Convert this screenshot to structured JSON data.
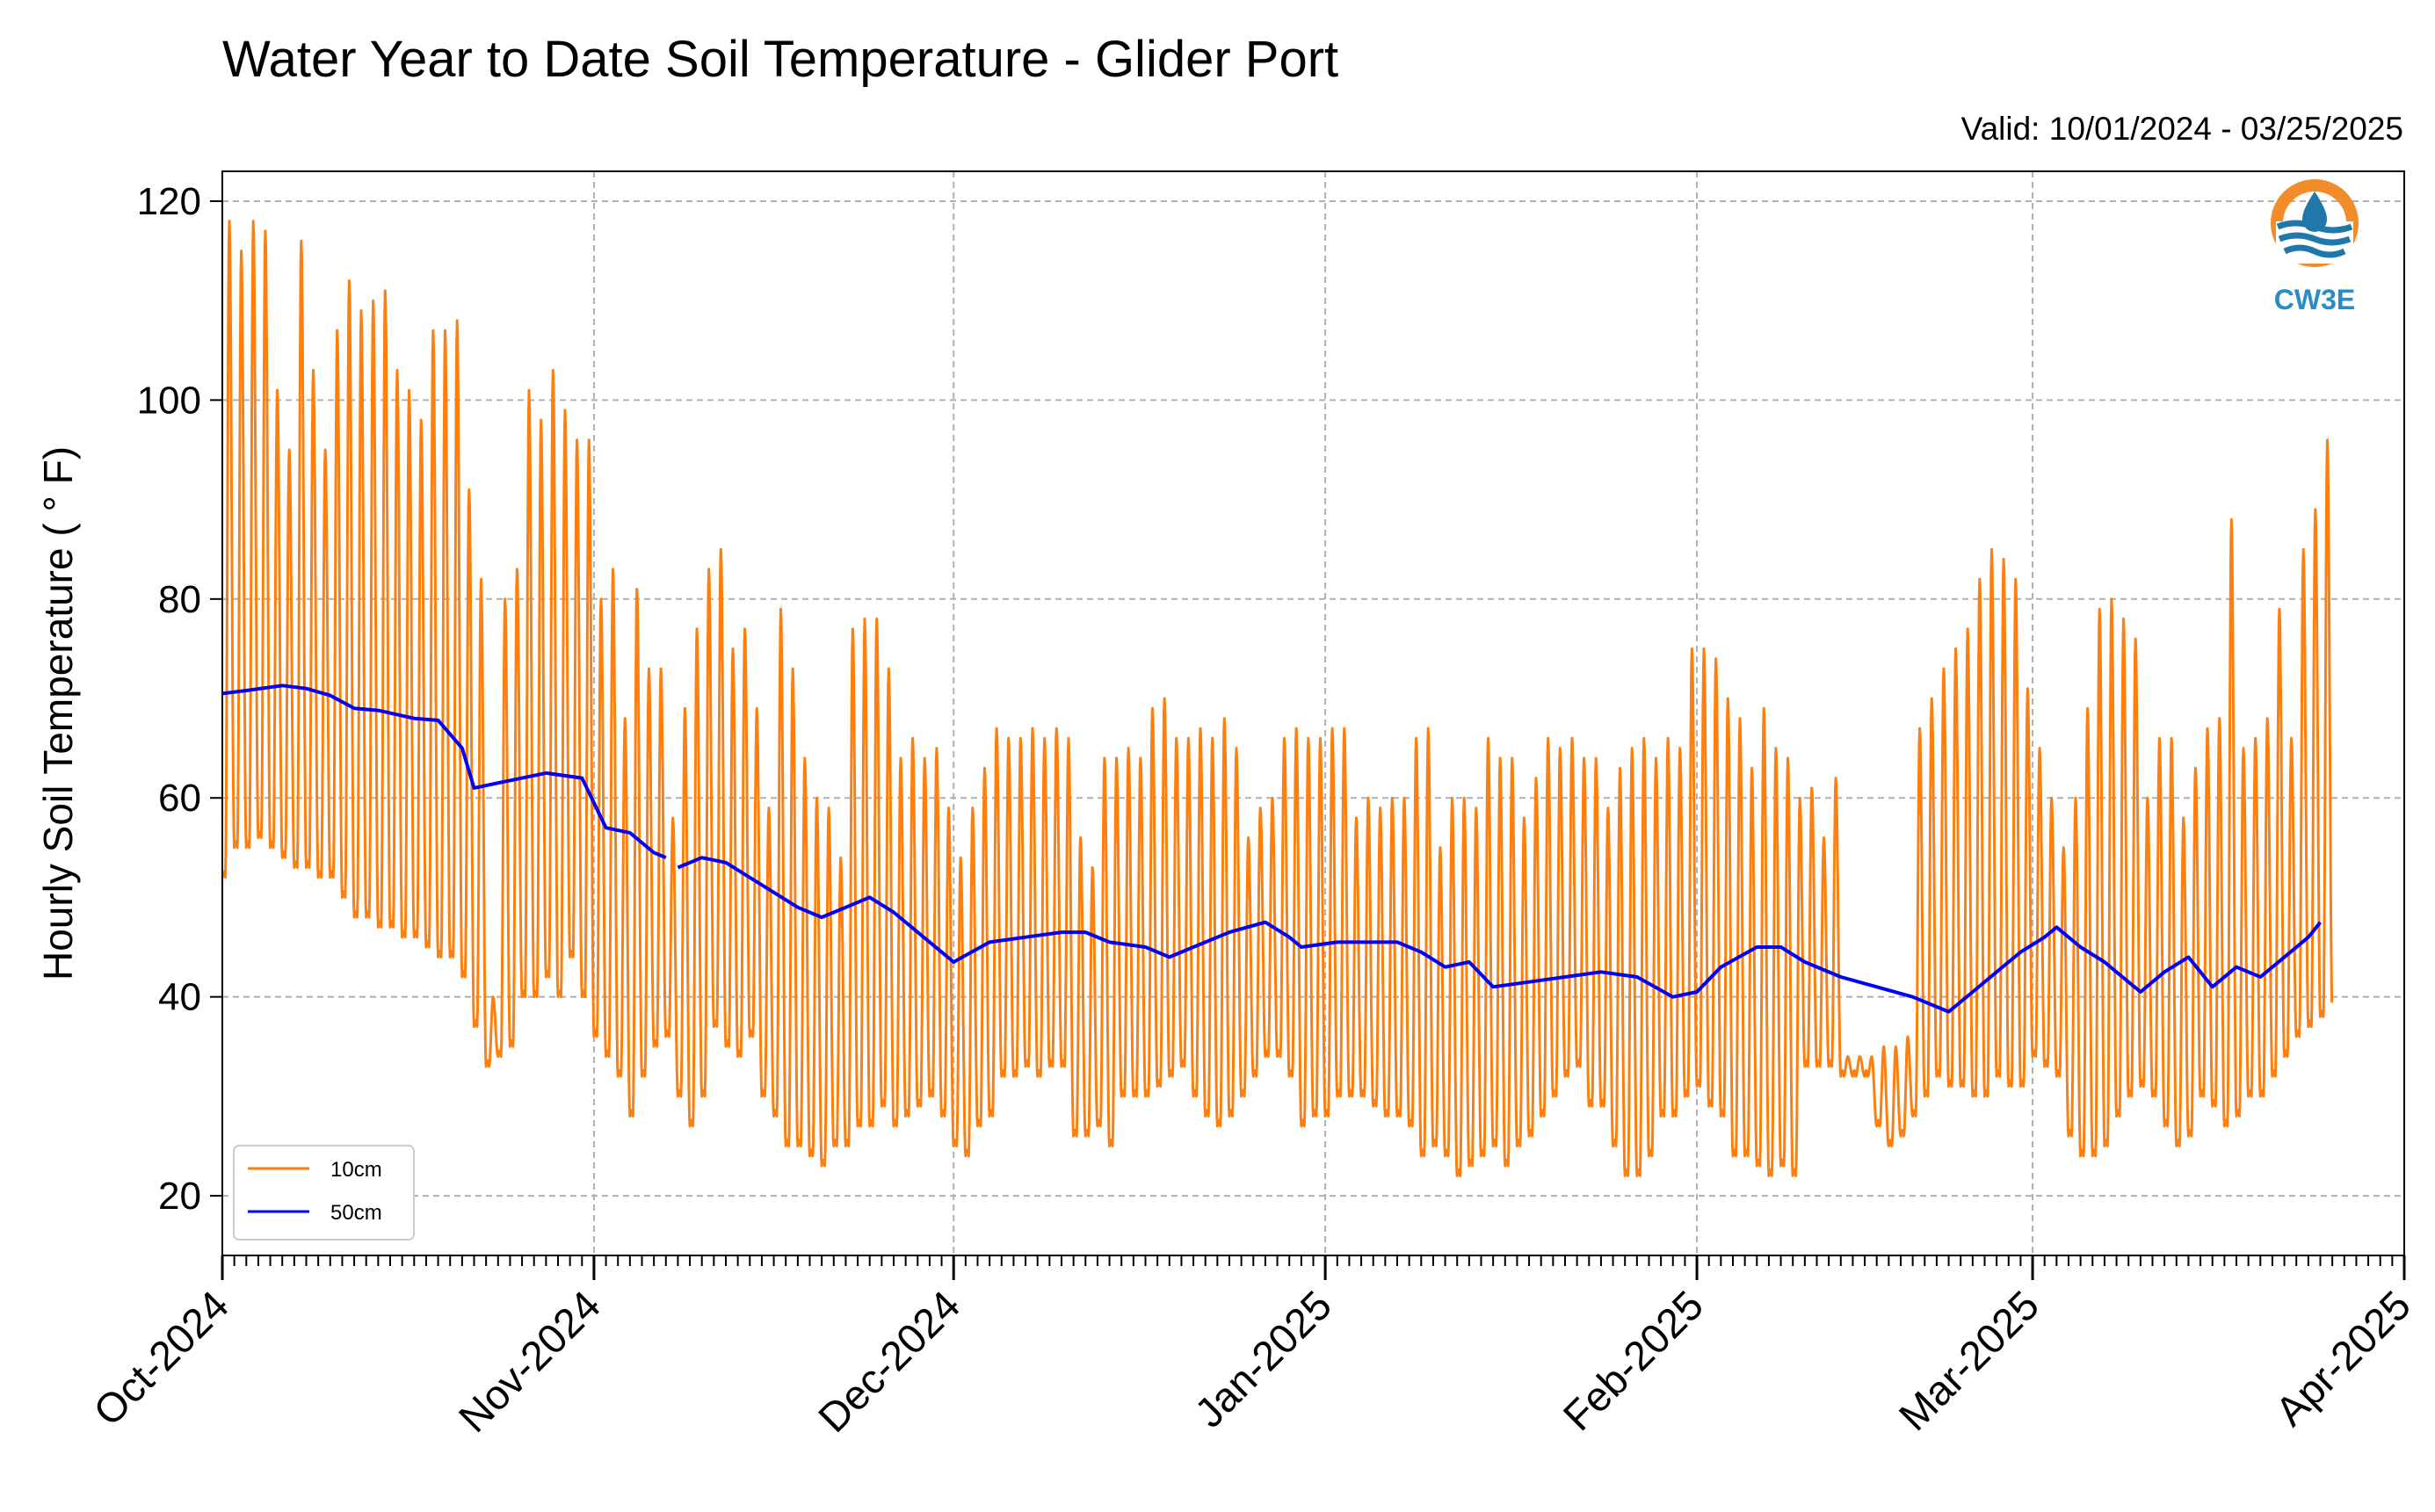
{
  "chart_data": {
    "type": "line",
    "title": "Water Year to Date Soil Temperature - Glider Port",
    "subtitle": "Valid: 10/01/2024 - 03/25/2025",
    "xlabel": "",
    "ylabel": "Hourly Soil Temperature ( ° F)",
    "xlim": [
      "2024-10-01",
      "2025-04-01"
    ],
    "ylim": [
      14,
      123
    ],
    "yticks": [
      20,
      40,
      60,
      80,
      100,
      120
    ],
    "xtick_labels": [
      "Oct-2024",
      "Nov-2024",
      "Dec-2024",
      "Jan-2025",
      "Feb-2025",
      "Mar-2025",
      "Apr-2025"
    ],
    "xtick_dates": [
      "2024-10-01",
      "2024-11-01",
      "2024-12-01",
      "2025-01-01",
      "2025-02-01",
      "2025-03-01",
      "2025-04-01"
    ],
    "grid": true,
    "legend_position": "lower-left",
    "series": [
      {
        "name": "10cm",
        "color": "#ff7f0e",
        "kind": "daily min/max (hourly oscillation)",
        "daily_max": [
          118,
          115,
          118,
          117,
          101,
          95,
          116,
          103,
          95,
          107,
          112,
          109,
          110,
          111,
          103,
          101,
          98,
          107,
          107,
          108,
          91,
          82,
          40,
          80,
          83,
          101,
          98,
          103,
          99,
          96,
          96,
          80,
          83,
          68,
          81,
          73,
          73,
          58,
          69,
          77,
          83,
          85,
          75,
          77,
          69,
          59,
          79,
          73,
          64,
          60,
          59,
          54,
          77,
          78,
          78,
          73,
          64,
          66,
          64,
          65,
          59,
          54,
          59,
          63,
          67,
          66,
          66,
          67,
          66,
          67,
          66,
          56,
          53,
          64,
          64,
          65,
          64,
          69,
          70,
          66,
          66,
          67,
          66,
          68,
          65,
          56,
          59,
          60,
          66,
          67,
          66,
          66,
          67,
          67,
          58,
          60,
          59,
          60,
          60,
          66,
          67,
          55,
          60,
          60,
          59,
          66,
          64,
          64,
          58,
          62,
          66,
          65,
          66,
          64,
          64,
          59,
          63,
          65,
          66,
          64,
          66,
          65,
          75,
          75,
          74,
          70,
          68,
          63,
          69,
          65,
          64,
          60,
          61,
          56,
          62,
          34,
          34,
          34,
          35,
          35,
          36,
          67,
          70,
          73,
          75,
          77,
          82,
          85,
          84,
          82,
          71,
          65,
          60,
          55,
          60,
          69,
          79,
          80,
          78,
          76,
          60,
          66,
          66,
          58,
          63,
          67,
          68,
          88,
          65,
          66,
          68,
          79,
          66,
          85,
          89,
          96
        ],
        "daily_min": [
          52,
          55,
          55,
          56,
          55,
          54,
          53,
          53,
          52,
          52,
          50,
          48,
          48,
          47,
          47,
          46,
          46,
          45,
          44,
          44,
          42,
          37,
          33,
          34,
          35,
          40,
          40,
          42,
          40,
          44,
          40,
          36,
          34,
          32,
          28,
          32,
          35,
          36,
          30,
          27,
          30,
          37,
          35,
          34,
          36,
          30,
          28,
          25,
          25,
          24,
          23,
          25,
          25,
          27,
          27,
          29,
          27,
          28,
          29,
          30,
          28,
          25,
          24,
          27,
          28,
          32,
          32,
          33,
          32,
          33,
          33,
          26,
          26,
          27,
          25,
          30,
          30,
          30,
          31,
          32,
          33,
          30,
          28,
          27,
          28,
          30,
          32,
          34,
          34,
          32,
          27,
          28,
          28,
          30,
          30,
          30,
          29,
          28,
          28,
          27,
          24,
          25,
          24,
          22,
          23,
          24,
          25,
          23,
          25,
          26,
          28,
          30,
          32,
          33,
          29,
          29,
          25,
          22,
          22,
          24,
          28,
          28,
          30,
          31,
          29,
          28,
          24,
          24,
          23,
          22,
          23,
          22,
          33,
          33,
          33,
          32,
          32,
          32,
          27,
          25,
          26,
          28,
          30,
          32,
          31,
          31,
          30,
          30,
          32,
          31,
          31,
          34,
          33,
          32,
          26,
          24,
          24,
          25,
          28,
          30,
          31,
          30,
          27,
          25,
          26,
          30,
          29,
          27,
          28,
          30,
          30,
          32,
          34,
          36,
          37,
          38
        ]
      },
      {
        "name": "50cm",
        "color": "#0000ff",
        "kind": "smooth",
        "points": [
          [
            "2024-10-01",
            70.5
          ],
          [
            "2024-10-03",
            70.8
          ],
          [
            "2024-10-06",
            71.3
          ],
          [
            "2024-10-08",
            71.0
          ],
          [
            "2024-10-10",
            70.3
          ],
          [
            "2024-10-12",
            69.0
          ],
          [
            "2024-10-14",
            68.8
          ],
          [
            "2024-10-17",
            68.0
          ],
          [
            "2024-10-19",
            67.8
          ],
          [
            "2024-10-21",
            65.0
          ],
          [
            "2024-10-22",
            61.0
          ],
          [
            "2024-10-24",
            61.5
          ],
          [
            "2024-10-26",
            62.0
          ],
          [
            "2024-10-28",
            62.5
          ],
          [
            "2024-10-31",
            62.0
          ],
          [
            "2024-11-02",
            57.0
          ],
          [
            "2024-11-04",
            56.5
          ],
          [
            "2024-11-06",
            54.5
          ],
          [
            "2024-11-07",
            54.0
          ],
          [
            "2024-11-08",
            53.0
          ],
          [
            "2024-11-10",
            54.0
          ],
          [
            "2024-11-12",
            53.5
          ],
          [
            "2024-11-14",
            52.0
          ],
          [
            "2024-11-16",
            50.5
          ],
          [
            "2024-11-18",
            49.0
          ],
          [
            "2024-11-20",
            48.0
          ],
          [
            "2024-11-22",
            49.0
          ],
          [
            "2024-11-24",
            50.0
          ],
          [
            "2024-11-26",
            48.5
          ],
          [
            "2024-11-28",
            46.5
          ],
          [
            "2024-11-30",
            44.5
          ],
          [
            "2024-12-01",
            43.5
          ],
          [
            "2024-12-04",
            45.5
          ],
          [
            "2024-12-07",
            46.0
          ],
          [
            "2024-12-10",
            46.5
          ],
          [
            "2024-12-12",
            46.5
          ],
          [
            "2024-12-14",
            45.5
          ],
          [
            "2024-12-17",
            45.0
          ],
          [
            "2024-12-19",
            44.0
          ],
          [
            "2024-12-21",
            45.0
          ],
          [
            "2024-12-24",
            46.5
          ],
          [
            "2024-12-27",
            47.5
          ],
          [
            "2024-12-29",
            46.0
          ],
          [
            "2024-12-30",
            45.0
          ],
          [
            "2025-01-02",
            45.5
          ],
          [
            "2025-01-04",
            45.5
          ],
          [
            "2025-01-07",
            45.5
          ],
          [
            "2025-01-09",
            44.5
          ],
          [
            "2025-01-11",
            43.0
          ],
          [
            "2025-01-13",
            43.5
          ],
          [
            "2025-01-15",
            41.0
          ],
          [
            "2025-01-18",
            41.5
          ],
          [
            "2025-01-21",
            42.0
          ],
          [
            "2025-01-24",
            42.5
          ],
          [
            "2025-01-27",
            42.0
          ],
          [
            "2025-01-30",
            40.0
          ],
          [
            "2025-02-01",
            40.5
          ],
          [
            "2025-02-03",
            43.0
          ],
          [
            "2025-02-06",
            45.0
          ],
          [
            "2025-02-08",
            45.0
          ],
          [
            "2025-02-10",
            43.5
          ],
          [
            "2025-02-13",
            42.0
          ],
          [
            "2025-02-16",
            41.0
          ],
          [
            "2025-02-19",
            40.0
          ],
          [
            "2025-02-22",
            38.5
          ],
          [
            "2025-02-24",
            40.5
          ],
          [
            "2025-02-26",
            42.5
          ],
          [
            "2025-02-28",
            44.5
          ],
          [
            "2025-03-02",
            46.0
          ],
          [
            "2025-03-03",
            47.0
          ],
          [
            "2025-03-05",
            45.0
          ],
          [
            "2025-03-07",
            43.5
          ],
          [
            "2025-03-09",
            41.5
          ],
          [
            "2025-03-10",
            40.5
          ],
          [
            "2025-03-12",
            42.5
          ],
          [
            "2025-03-14",
            44.0
          ],
          [
            "2025-03-16",
            41.0
          ],
          [
            "2025-03-18",
            43.0
          ],
          [
            "2025-03-20",
            42.0
          ],
          [
            "2025-03-22",
            44.0
          ],
          [
            "2025-03-24",
            46.0
          ],
          [
            "2025-03-25",
            47.5
          ]
        ]
      }
    ]
  },
  "logo": {
    "text": "CW3E",
    "ring_color": "#f28c28",
    "wave_color": "#1f78a8"
  },
  "colors": {
    "grid": "#b0b0b0",
    "axis": "#000000"
  }
}
